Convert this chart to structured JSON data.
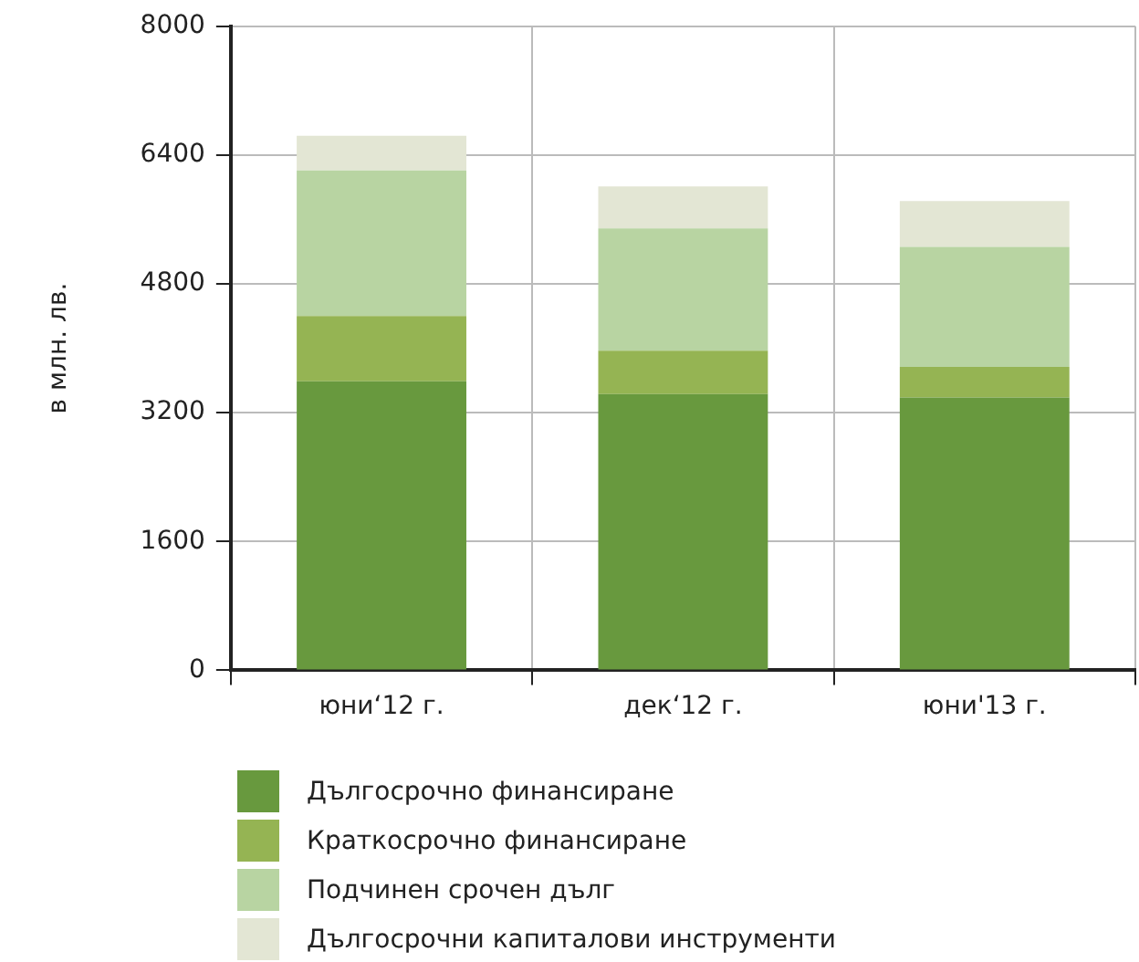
{
  "chart_data": {
    "type": "bar",
    "stacked": true,
    "ylabel": "в млн. лв.",
    "categories": [
      "юни‘12 г.",
      "дек‘12 г.",
      "юни'13 г."
    ],
    "series": [
      {
        "name": "Дългосрочно финансиране",
        "color": "#68993e",
        "values": [
          3590,
          3430,
          3390
        ]
      },
      {
        "name": "Краткосрочно финансиране",
        "color": "#95b453",
        "values": [
          810,
          540,
          380
        ]
      },
      {
        "name": "Подчинен срочен дълг",
        "color": "#b8d4a2",
        "values": [
          1810,
          1520,
          1490
        ]
      },
      {
        "name": "Дългосрочни капиталови инструменти",
        "color": "#e3e6d4",
        "values": [
          430,
          520,
          570
        ]
      }
    ],
    "ylim": [
      0,
      8000
    ],
    "yticks": [
      0,
      1600,
      3200,
      4800,
      6400,
      8000
    ],
    "grid": true,
    "legend": "bottom"
  }
}
